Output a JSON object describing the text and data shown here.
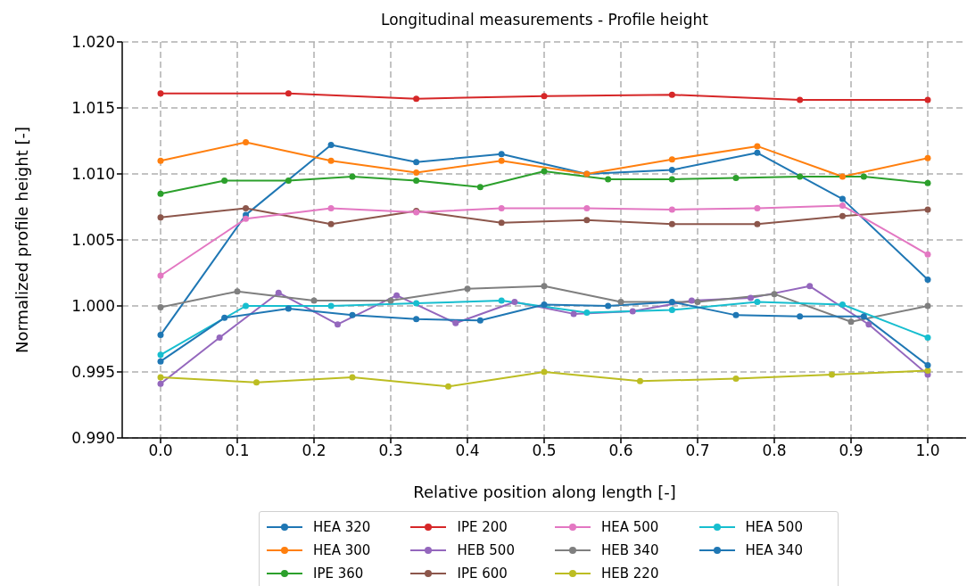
{
  "chart_data": {
    "type": "line",
    "title": "Longitudinal measurements - Profile height",
    "xlabel": "Relative position along length [-]",
    "ylabel": "Normalized profile height [-]",
    "xlim": [
      -0.05,
      1.05
    ],
    "ylim": [
      0.99,
      1.02
    ],
    "xticks": [
      {
        "value": 0,
        "label": "0.0"
      },
      {
        "value": 0.1,
        "label": "0.1"
      },
      {
        "value": 0.2,
        "label": "0.2"
      },
      {
        "value": 0.3,
        "label": "0.3"
      },
      {
        "value": 0.4,
        "label": "0.4"
      },
      {
        "value": 0.5,
        "label": "0.5"
      },
      {
        "value": 0.6,
        "label": "0.6"
      },
      {
        "value": 0.7,
        "label": "0.7"
      },
      {
        "value": 0.8,
        "label": "0.8"
      },
      {
        "value": 0.9,
        "label": "0.9"
      },
      {
        "value": 1,
        "label": "1.0"
      }
    ],
    "yticks": [
      {
        "value": 0.99,
        "label": "0.990"
      },
      {
        "value": 0.995,
        "label": "0.995"
      },
      {
        "value": 1,
        "label": "1.000"
      },
      {
        "value": 1.005,
        "label": "1.005"
      },
      {
        "value": 1.01,
        "label": "1.010"
      },
      {
        "value": 1.015,
        "label": "1.015"
      },
      {
        "value": 1.02,
        "label": "1.020"
      }
    ],
    "grid": true,
    "legend": "bottom",
    "marker": "circle",
    "line_style": "solid",
    "series": [
      {
        "name": "HEA 320",
        "color": "#1f77b4",
        "x": [
          0,
          0.1111,
          0.2222,
          0.3333,
          0.4444,
          0.5556,
          0.6667,
          0.7778,
          0.8889,
          1
        ],
        "values": [
          0.9978,
          1.0069,
          1.0122,
          1.0109,
          1.0115,
          1.01,
          1.0103,
          1.0116,
          1.0081,
          1.002
        ]
      },
      {
        "name": "HEA 300",
        "color": "#ff7f0e",
        "x": [
          0,
          0.1111,
          0.2222,
          0.3333,
          0.4444,
          0.5556,
          0.6667,
          0.7778,
          0.8889,
          1
        ],
        "values": [
          1.011,
          1.0124,
          1.011,
          1.0101,
          1.011,
          1.01,
          1.0111,
          1.0121,
          1.0098,
          1.0112
        ]
      },
      {
        "name": "IPE 360",
        "color": "#2ca02c",
        "x": [
          0,
          0.0833,
          0.1667,
          0.25,
          0.3333,
          0.4167,
          0.5,
          0.5833,
          0.6667,
          0.75,
          0.8333,
          0.9167,
          1
        ],
        "values": [
          1.0085,
          1.0095,
          1.0095,
          1.0098,
          1.0095,
          1.009,
          1.0102,
          1.0096,
          1.0096,
          1.0097,
          1.0098,
          1.0098,
          1.0093
        ]
      },
      {
        "name": "IPE 200",
        "color": "#d62728",
        "x": [
          0,
          0.1667,
          0.3333,
          0.5,
          0.6667,
          0.8333,
          1
        ],
        "values": [
          1.0161,
          1.0161,
          1.0157,
          1.0159,
          1.016,
          1.0156,
          1.0156
        ]
      },
      {
        "name": "HEB 500",
        "color": "#9467bd",
        "x": [
          0,
          0.0769,
          0.1538,
          0.2308,
          0.3077,
          0.3846,
          0.4615,
          0.5385,
          0.6154,
          0.6923,
          0.7692,
          0.8462,
          0.9231,
          1
        ],
        "values": [
          0.9941,
          0.9976,
          1.001,
          0.9986,
          1.0008,
          0.9987,
          1.0003,
          0.9994,
          0.9996,
          1.0004,
          1.0006,
          1.0015,
          0.9986,
          0.9948
        ]
      },
      {
        "name": "IPE 600",
        "color": "#8c564b",
        "x": [
          0,
          0.1111,
          0.2222,
          0.3333,
          0.4444,
          0.5556,
          0.6667,
          0.7778,
          0.8889,
          1
        ],
        "values": [
          1.0067,
          1.0074,
          1.0062,
          1.0072,
          1.0063,
          1.0065,
          1.0062,
          1.0062,
          1.0068,
          1.0073
        ]
      },
      {
        "name": "HEA 500",
        "color": "#e377c2",
        "x": [
          0,
          0.1111,
          0.2222,
          0.3333,
          0.4444,
          0.5556,
          0.6667,
          0.7778,
          0.8889,
          1
        ],
        "values": [
          1.0023,
          1.0066,
          1.0074,
          1.0071,
          1.0074,
          1.0074,
          1.0073,
          1.0074,
          1.0076,
          1.0039
        ]
      },
      {
        "name": "HEB 340",
        "color": "#7f7f7f",
        "x": [
          0,
          0.1,
          0.2,
          0.3,
          0.4,
          0.5,
          0.6,
          0.7,
          0.8,
          0.9,
          1
        ],
        "values": [
          0.9999,
          1.0011,
          1.0004,
          1.0004,
          1.0013,
          1.0015,
          1.0003,
          1.0003,
          1.0009,
          0.9988,
          1.0
        ]
      },
      {
        "name": "HEB 220",
        "color": "#bcbd22",
        "x": [
          0,
          0.125,
          0.25,
          0.375,
          0.5,
          0.625,
          0.75,
          0.875,
          1
        ],
        "values": [
          0.9946,
          0.9942,
          0.9946,
          0.9939,
          0.995,
          0.9943,
          0.9945,
          0.9948,
          0.9951
        ]
      },
      {
        "name": "HEA 500",
        "color": "#17becf",
        "x": [
          0,
          0.1111,
          0.2222,
          0.3333,
          0.4444,
          0.5556,
          0.6667,
          0.7778,
          0.8889,
          1
        ],
        "values": [
          0.9963,
          1.0,
          1.0,
          1.0002,
          1.0004,
          0.9995,
          0.9997,
          1.0003,
          1.0001,
          0.9976
        ]
      },
      {
        "name": "HEA 340",
        "color": "#1f77b4",
        "x": [
          0,
          0.0833,
          0.1667,
          0.25,
          0.3333,
          0.4167,
          0.5,
          0.5833,
          0.6667,
          0.75,
          0.8333,
          0.9167,
          1
        ],
        "values": [
          0.9958,
          0.9991,
          0.9998,
          0.9993,
          0.999,
          0.9989,
          1.0001,
          1.0,
          1.0003,
          0.9993,
          0.9992,
          0.9992,
          0.9955
        ]
      }
    ]
  }
}
